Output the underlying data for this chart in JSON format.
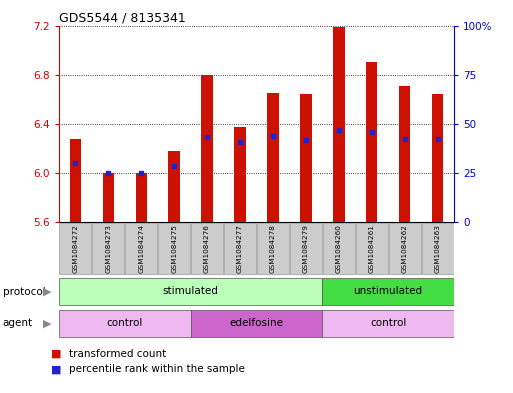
{
  "title": "GDS5544 / 8135341",
  "samples": [
    "GSM1084272",
    "GSM1084273",
    "GSM1084274",
    "GSM1084275",
    "GSM1084276",
    "GSM1084277",
    "GSM1084278",
    "GSM1084279",
    "GSM1084260",
    "GSM1084261",
    "GSM1084262",
    "GSM1084263"
  ],
  "bar_tops": [
    6.28,
    6.0,
    6.0,
    6.18,
    6.8,
    6.37,
    6.65,
    6.64,
    7.19,
    6.9,
    6.71,
    6.64
  ],
  "bar_bottom": 5.6,
  "blue_markers": [
    6.08,
    6.0,
    6.0,
    6.06,
    6.29,
    6.25,
    6.3,
    6.27,
    6.35,
    6.33,
    6.28,
    6.28
  ],
  "ylim": [
    5.6,
    7.2
  ],
  "yticks_left": [
    5.6,
    6.0,
    6.4,
    6.8,
    7.2
  ],
  "yticks_right_vals": [
    0,
    25,
    50,
    75,
    "100%"
  ],
  "yticks_right_pos": [
    5.6,
    6.0,
    6.4,
    6.8,
    7.2
  ],
  "bar_color": "#cc1100",
  "blue_color": "#2222cc",
  "protocol_groups": [
    {
      "label": "stimulated",
      "start": 0,
      "end": 8,
      "color": "#bbffbb"
    },
    {
      "label": "unstimulated",
      "start": 8,
      "end": 12,
      "color": "#44dd44"
    }
  ],
  "agent_groups": [
    {
      "label": "control",
      "start": 0,
      "end": 4,
      "color": "#f0b8f0"
    },
    {
      "label": "edelfosine",
      "start": 4,
      "end": 8,
      "color": "#cc66cc"
    },
    {
      "label": "control",
      "start": 8,
      "end": 12,
      "color": "#f0b8f0"
    }
  ],
  "label_color_left": "#cc0000",
  "label_color_right": "#0000cc",
  "figsize": [
    5.13,
    3.93
  ],
  "dpi": 100
}
